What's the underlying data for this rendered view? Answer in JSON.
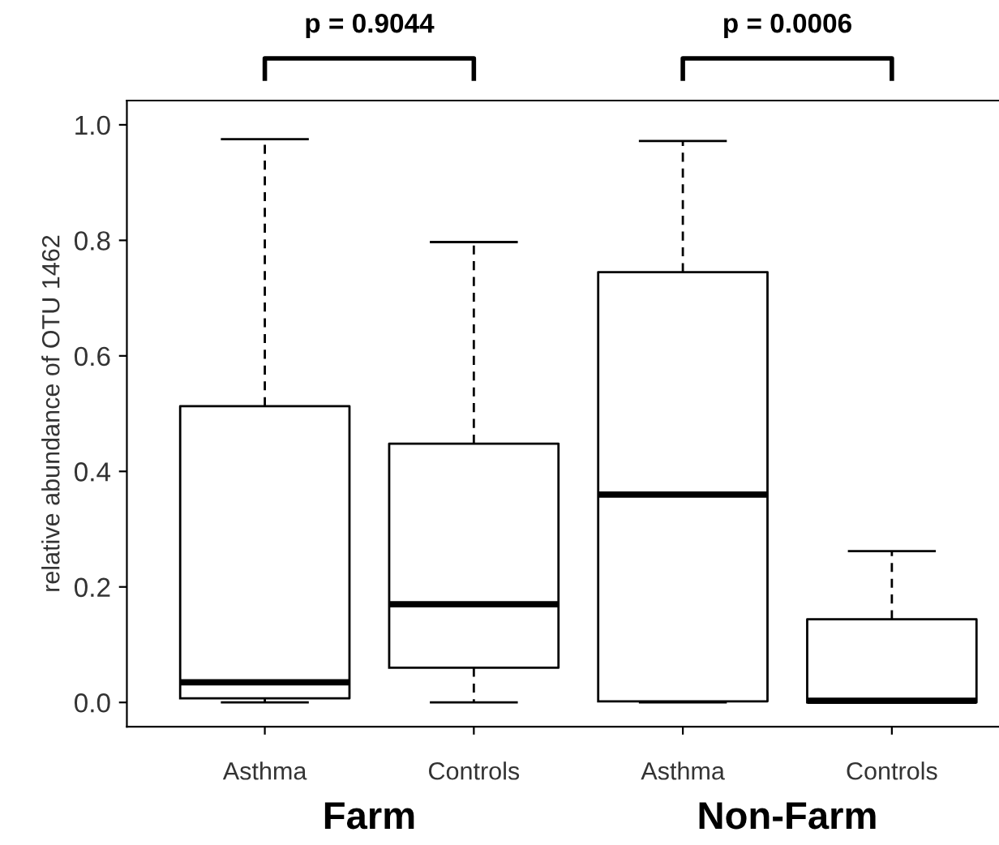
{
  "chart_data": {
    "type": "box",
    "ylabel": "relative abundance of OTU 1462",
    "categories": [
      "Asthma",
      "Controls",
      "Asthma",
      "Controls"
    ],
    "boxes": [
      {
        "low": 0.0,
        "q1": 0.007,
        "median": 0.035,
        "q3": 0.513,
        "high": 0.975
      },
      {
        "low": 0.0,
        "q1": 0.06,
        "median": 0.17,
        "q3": 0.448,
        "high": 0.797
      },
      {
        "low": 0.0,
        "q1": 0.002,
        "median": 0.36,
        "q3": 0.745,
        "high": 0.972
      },
      {
        "low": 0.0,
        "q1": 0.0,
        "median": 0.003,
        "q3": 0.144,
        "high": 0.262
      }
    ],
    "ylim": [
      -0.042,
      1.042
    ],
    "yticks": [
      {
        "value": 0,
        "label": "0.0"
      },
      {
        "value": 0.2,
        "label": "0.2"
      },
      {
        "value": 0.4,
        "label": "0.4"
      },
      {
        "value": 0.6,
        "label": "0.6"
      },
      {
        "value": 0.8,
        "label": "0.8"
      },
      {
        "value": 1,
        "label": "1.0"
      }
    ],
    "grid": false,
    "annotations": [
      "p = 0.9044",
      "p = 0.0006",
      "Farm",
      "Non-Farm"
    ]
  }
}
